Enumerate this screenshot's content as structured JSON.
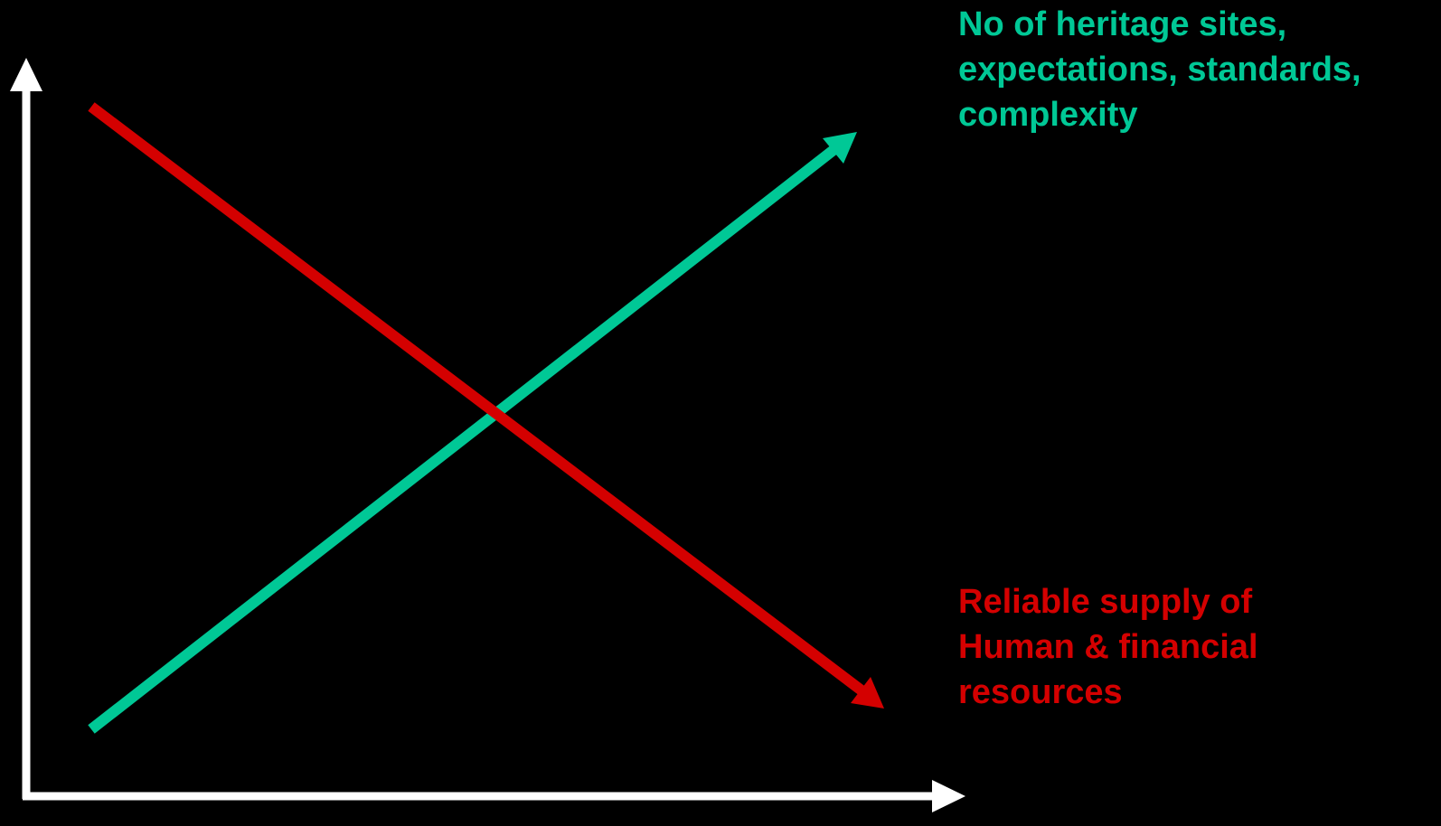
{
  "colors": {
    "background": "#000000",
    "axes": "#ffffff",
    "rising": "#00c896",
    "falling": "#d40000"
  },
  "rising_trend": {
    "direction": "increasing",
    "label_lines": [
      "No of heritage sites,",
      "expectations, standards,",
      "complexity"
    ]
  },
  "falling_trend": {
    "direction": "decreasing",
    "label_lines": [
      "Reliable supply of",
      "Human & financial",
      "resources"
    ]
  }
}
